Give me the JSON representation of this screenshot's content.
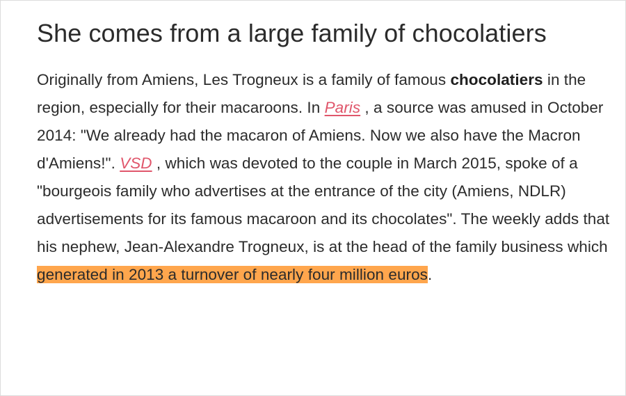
{
  "article": {
    "heading": "She comes from a large family of chocolatiers",
    "paragraph": {
      "t1": "Originally from Amiens, Les Trogneux is a family of famous ",
      "bold": "chocolatiers",
      "t2": " in the region, especially for their macaroons. In ",
      "link1": "Paris",
      "t3": " , a source was amused in October 2014: \"We already had the macaron of Amiens. Now we also have the Macron d'Amiens!\". ",
      "link2": "VSD",
      "t4": " , which was devoted to the couple in March 2015, spoke of a \"bourgeois family who advertises at the entrance of the city (Amiens, NDLR) advertisements for its famous macaroon and its chocolates\". The weekly adds that his nephew, Jean-Alexandre Trogneux, is at the head of the family business which ",
      "highlight": "generated in 2013 a turnover of nearly four million euros",
      "t5": "."
    }
  },
  "colors": {
    "text": "#2b2b2b",
    "link": "#e0566b",
    "highlight": "#ffa64d"
  }
}
